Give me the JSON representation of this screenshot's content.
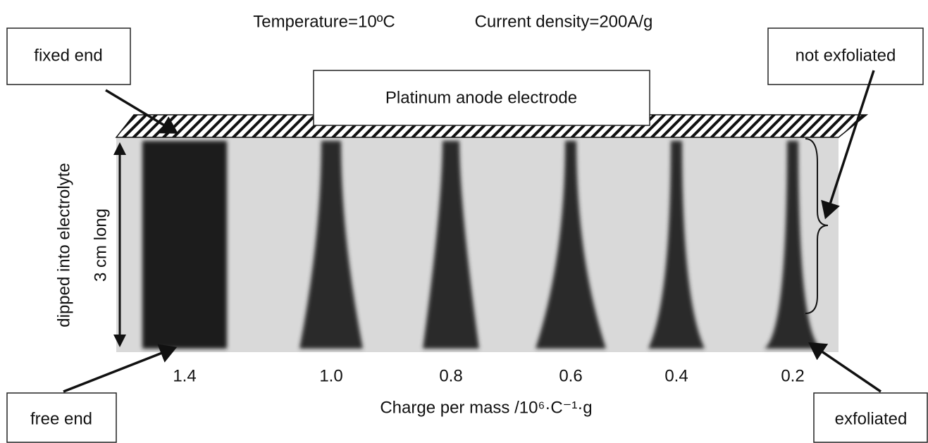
{
  "header": {
    "temperature": "Temperature=10ºC",
    "current_density": "Current density=200A/g"
  },
  "labels": {
    "fixed_end": "fixed end",
    "not_exfoliated": "not exfoliated",
    "electrode": "Platinum anode electrode",
    "dipped": "dipped into electrolyte",
    "length": "3 cm long",
    "free_end": "free end",
    "exfoliated": "exfoliated"
  },
  "samples": [
    "1.4",
    "1.0",
    "0.8",
    "0.6",
    "0.4",
    "0.2"
  ],
  "x_axis_label": "Charge per mass /10⁶·C⁻¹·g"
}
